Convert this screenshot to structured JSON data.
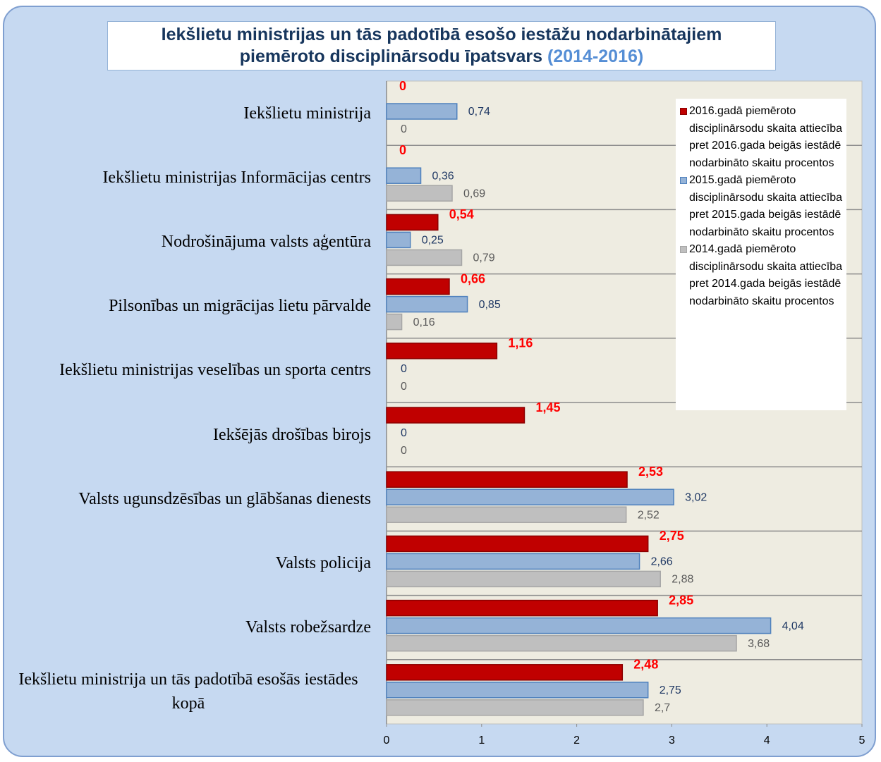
{
  "chart_data": {
    "type": "bar",
    "orientation": "horizontal",
    "title": [
      "Iekšlietu ministrijas un tās padotībā esošo iestāžu nodarbinātajiem",
      "piemēroto disciplinārsodu  īpatsvars"
    ],
    "title_highlight": "(2014-2016)",
    "categories": [
      "Iekšlietu ministrija",
      "Iekšlietu ministrijas Informācijas centrs",
      "Nodrošinājuma valsts aģentūra",
      "Pilsonības un migrācijas lietu pārvalde",
      "Iekšlietu ministrijas veselības un sporta centrs",
      "Iekšējās drošības birojs",
      "Valsts ugunsdzēsības un glābšanas dienests",
      "Valsts policija",
      "Valsts robežsardze",
      "Iekšlietu ministrija un tās padotībā esošās iestādes kopā"
    ],
    "series": [
      {
        "name": "2016.gadā piemēroto disciplinārsodu skaita attiecība pret 2016.gada beigās iestādē nodarbināto skaitu procentos",
        "color": "#c00000",
        "border": "#8b0000",
        "label_color": "#ff0000",
        "values": [
          0,
          0,
          0.54,
          0.66,
          1.16,
          1.45,
          2.53,
          2.75,
          2.85,
          2.48
        ],
        "value_labels": [
          "0",
          "0",
          "0,54",
          "0,66",
          "1,16",
          "1,45",
          "2,53",
          "2,75",
          "2,85",
          "2,48"
        ]
      },
      {
        "name": "2015.gadā piemēroto disciplinārsodu skaita attiecība pret 2015.gada beigās iestādē nodarbināto skaitu procentos",
        "color": "#95b3d7",
        "border": "#4f81bd",
        "label_color": "#1f3864",
        "values": [
          0.74,
          0.36,
          0.25,
          0.85,
          0,
          0,
          3.02,
          2.66,
          4.04,
          2.75
        ],
        "value_labels": [
          "0,74",
          "0,36",
          "0,25",
          "0,85",
          "0",
          "0",
          "3,02",
          "2,66",
          "4,04",
          "2,75"
        ]
      },
      {
        "name": "2014.gadā piemēroto disciplinārsodu skaita attiecība pret 2014.gada beigās iestādē nodarbināto skaitu procentos",
        "color": "#bfbfbf",
        "border": "#a6a6a6",
        "label_color": "#595959",
        "values": [
          0,
          0.69,
          0.79,
          0.16,
          0,
          0,
          2.52,
          2.88,
          3.68,
          2.7
        ],
        "value_labels": [
          "0",
          "0,69",
          "0,79",
          "0,16",
          "0",
          "0",
          "2,52",
          "2,88",
          "3,68",
          "2,7"
        ]
      }
    ],
    "xlim": [
      0,
      5
    ],
    "xticks": [
      0,
      1,
      2,
      3,
      4,
      5
    ],
    "legend": "top-right"
  }
}
